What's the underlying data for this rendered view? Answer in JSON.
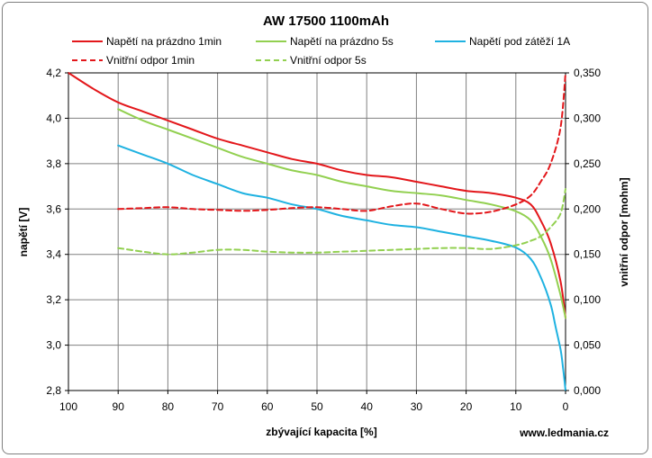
{
  "chart_data": {
    "type": "line",
    "title": "AW 17500 1100mAh",
    "xlabel": "zbývající kapacita [%]",
    "ylabel": "napětí [V]",
    "y2label": "vnitřní odpor [mohm]",
    "xlim": [
      100,
      0
    ],
    "ylim": [
      2.8,
      4.2
    ],
    "y2lim": [
      0.0,
      0.35
    ],
    "x_ticks": [
      "100",
      "90",
      "80",
      "70",
      "60",
      "50",
      "40",
      "30",
      "20",
      "10",
      "0"
    ],
    "y_ticks": [
      "2,8",
      "3,0",
      "3,2",
      "3,4",
      "3,6",
      "3,8",
      "4,0",
      "4,2"
    ],
    "y2_ticks": [
      "0,000",
      "0,050",
      "0,100",
      "0,150",
      "0,200",
      "0,250",
      "0,300",
      "0,350"
    ],
    "grid": "vertical and horizontal major gridlines",
    "legend_position": "top",
    "credit": "www.ledmania.cz",
    "series": [
      {
        "name": "Napětí na prázdno 1min",
        "axis": "left",
        "color": "#e3171b",
        "dash": "solid",
        "x": [
          100,
          95,
          90,
          85,
          80,
          75,
          70,
          65,
          60,
          55,
          50,
          45,
          40,
          35,
          30,
          25,
          20,
          15,
          10,
          7,
          5,
          3,
          1,
          0
        ],
        "y": [
          4.2,
          4.13,
          4.07,
          4.03,
          3.99,
          3.95,
          3.91,
          3.88,
          3.85,
          3.82,
          3.8,
          3.77,
          3.75,
          3.74,
          3.72,
          3.7,
          3.68,
          3.67,
          3.65,
          3.62,
          3.55,
          3.45,
          3.28,
          3.12
        ]
      },
      {
        "name": "Napětí na prázdno 5s",
        "axis": "left",
        "color": "#92d050",
        "dash": "solid",
        "x": [
          90,
          85,
          80,
          75,
          70,
          65,
          60,
          55,
          50,
          45,
          40,
          35,
          30,
          25,
          20,
          15,
          10,
          7,
          5,
          3,
          1,
          0
        ],
        "y": [
          4.04,
          3.99,
          3.95,
          3.91,
          3.87,
          3.83,
          3.8,
          3.77,
          3.75,
          3.72,
          3.7,
          3.68,
          3.67,
          3.66,
          3.64,
          3.62,
          3.59,
          3.55,
          3.48,
          3.38,
          3.22,
          3.12
        ]
      },
      {
        "name": "Napětí pod zátěží 1A",
        "axis": "left",
        "color": "#1fb2e1",
        "dash": "solid",
        "x": [
          90,
          85,
          80,
          75,
          70,
          65,
          60,
          55,
          50,
          45,
          40,
          35,
          30,
          25,
          20,
          15,
          10,
          7,
          5,
          3,
          2,
          1,
          0.5,
          0
        ],
        "y": [
          3.88,
          3.84,
          3.8,
          3.75,
          3.71,
          3.67,
          3.65,
          3.62,
          3.6,
          3.57,
          3.55,
          3.53,
          3.52,
          3.5,
          3.48,
          3.46,
          3.43,
          3.38,
          3.3,
          3.18,
          3.08,
          2.98,
          2.9,
          2.8
        ]
      },
      {
        "name": "Vnitřní odpor 1min",
        "axis": "right",
        "color": "#e3171b",
        "dash": "dashed",
        "x": [
          90,
          85,
          80,
          75,
          70,
          65,
          60,
          55,
          50,
          45,
          40,
          35,
          30,
          25,
          20,
          15,
          10,
          7,
          5,
          3,
          1,
          0
        ],
        "y": [
          0.2,
          0.201,
          0.202,
          0.2,
          0.199,
          0.198,
          0.199,
          0.201,
          0.202,
          0.2,
          0.198,
          0.203,
          0.206,
          0.2,
          0.195,
          0.197,
          0.205,
          0.215,
          0.23,
          0.25,
          0.29,
          0.35
        ]
      },
      {
        "name": "Vnitřní odpor 5s",
        "axis": "right",
        "color": "#92d050",
        "dash": "dashed",
        "x": [
          90,
          85,
          80,
          75,
          70,
          65,
          60,
          55,
          50,
          45,
          40,
          35,
          30,
          25,
          20,
          15,
          10,
          7,
          5,
          3,
          1,
          0
        ],
        "y": [
          0.157,
          0.153,
          0.15,
          0.152,
          0.155,
          0.155,
          0.153,
          0.152,
          0.152,
          0.153,
          0.154,
          0.155,
          0.156,
          0.157,
          0.157,
          0.156,
          0.16,
          0.165,
          0.17,
          0.18,
          0.195,
          0.222
        ]
      }
    ]
  }
}
